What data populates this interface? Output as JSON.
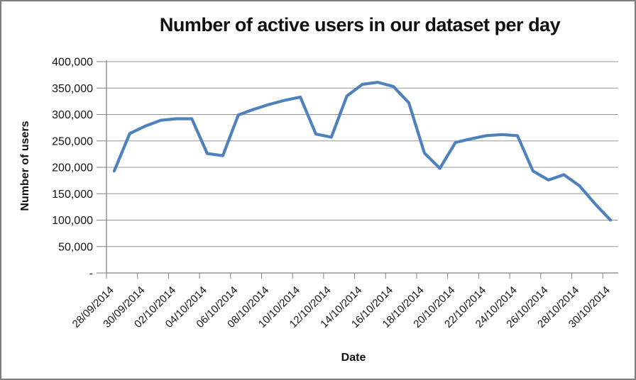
{
  "chart_data": {
    "type": "line",
    "title": "Number of active users in our dataset per day",
    "xlabel": "Date",
    "ylabel": "Number of users",
    "x": [
      "28/09/2014",
      "29/09/2014",
      "30/09/2014",
      "01/10/2014",
      "02/10/2014",
      "03/10/2014",
      "04/10/2014",
      "05/10/2014",
      "06/10/2014",
      "07/10/2014",
      "08/10/2014",
      "09/10/2014",
      "10/10/2014",
      "11/10/2014",
      "12/10/2014",
      "13/10/2014",
      "14/10/2014",
      "15/10/2014",
      "16/10/2014",
      "17/10/2014",
      "18/10/2014",
      "19/10/2014",
      "20/10/2014",
      "21/10/2014",
      "22/10/2014",
      "23/10/2014",
      "24/10/2014",
      "25/10/2014",
      "26/10/2014",
      "27/10/2014",
      "28/10/2014",
      "29/10/2014",
      "30/10/2014"
    ],
    "series": [
      {
        "name": "active users",
        "values": [
          193000,
          264000,
          278000,
          289000,
          292000,
          292000,
          226000,
          222000,
          299000,
          310000,
          319000,
          327000,
          333000,
          263000,
          257000,
          335000,
          357000,
          361000,
          353000,
          322000,
          227000,
          198000,
          247000,
          254000,
          260000,
          262000,
          260000,
          193000,
          176000,
          186000,
          165000,
          131000,
          100000
        ]
      }
    ],
    "ylim": [
      0,
      400000
    ],
    "ytick_step": 50000,
    "ytick_labels": [
      "-",
      "50,000",
      "100,000",
      "150,000",
      "200,000",
      "250,000",
      "300,000",
      "350,000",
      "400,000"
    ],
    "xtick_interval": 2,
    "grid": true,
    "legend": "none",
    "marker": "none",
    "line_color": "#4F81BD",
    "gridline_color": "#969696",
    "axis_color": "#808080",
    "text_color": "#111111",
    "background_color": "#ffffff",
    "border_color": "#7f7f7f"
  }
}
